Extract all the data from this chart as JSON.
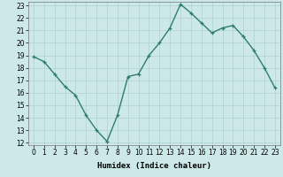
{
  "x": [
    0,
    1,
    2,
    3,
    4,
    5,
    6,
    7,
    8,
    9,
    10,
    11,
    12,
    13,
    14,
    15,
    16,
    17,
    18,
    19,
    20,
    21,
    22,
    23
  ],
  "y": [
    18.9,
    18.5,
    17.5,
    16.5,
    15.8,
    14.2,
    13.0,
    12.1,
    14.2,
    17.3,
    17.5,
    19.0,
    20.0,
    21.2,
    23.1,
    22.4,
    21.6,
    20.8,
    21.2,
    21.4,
    20.5,
    19.4,
    18.0,
    16.4
  ],
  "xlabel": "Humidex (Indice chaleur)",
  "ylim_min": 11.8,
  "ylim_max": 23.3,
  "xlim_min": -0.5,
  "xlim_max": 23.5,
  "yticks": [
    12,
    13,
    14,
    15,
    16,
    17,
    18,
    19,
    20,
    21,
    22,
    23
  ],
  "xticks": [
    0,
    1,
    2,
    3,
    4,
    5,
    6,
    7,
    8,
    9,
    10,
    11,
    12,
    13,
    14,
    15,
    16,
    17,
    18,
    19,
    20,
    21,
    22,
    23
  ],
  "line_color": "#2e7d6e",
  "bg_color": "#cce8e8",
  "grid_color": "#b0d0d0",
  "tick_label_fontsize": 5.5,
  "xlabel_fontsize": 6.5,
  "line_width": 1.0,
  "marker_size": 3.5
}
